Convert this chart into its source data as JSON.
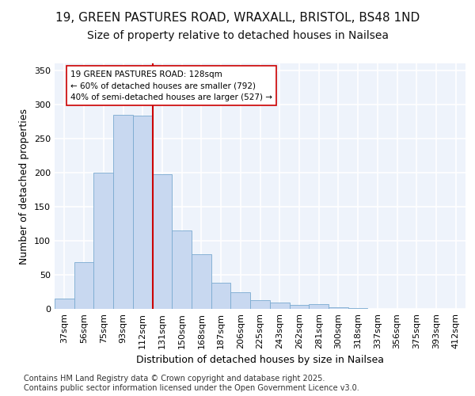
{
  "title_line1": "19, GREEN PASTURES ROAD, WRAXALL, BRISTOL, BS48 1ND",
  "title_line2": "Size of property relative to detached houses in Nailsea",
  "xlabel": "Distribution of detached houses by size in Nailsea",
  "ylabel": "Number of detached properties",
  "categories": [
    "37sqm",
    "56sqm",
    "75sqm",
    "93sqm",
    "112sqm",
    "131sqm",
    "150sqm",
    "168sqm",
    "187sqm",
    "206sqm",
    "225sqm",
    "243sqm",
    "262sqm",
    "281sqm",
    "300sqm",
    "318sqm",
    "337sqm",
    "356sqm",
    "375sqm",
    "393sqm",
    "412sqm"
  ],
  "values": [
    15,
    68,
    200,
    285,
    283,
    197,
    115,
    80,
    38,
    24,
    13,
    9,
    6,
    7,
    2,
    1,
    0,
    0,
    0,
    0,
    0
  ],
  "bar_color": "#c8d8f0",
  "bar_edge_color": "#7aaad0",
  "plot_bg_color": "#eef3fb",
  "fig_bg_color": "#ffffff",
  "grid_color": "#ffffff",
  "vline_color": "#cc0000",
  "vline_index": 5,
  "annotation_text": "19 GREEN PASTURES ROAD: 128sqm\n← 60% of detached houses are smaller (792)\n40% of semi-detached houses are larger (527) →",
  "annotation_box_facecolor": "#ffffff",
  "annotation_box_edgecolor": "#cc0000",
  "ylim": [
    0,
    360
  ],
  "yticks": [
    0,
    50,
    100,
    150,
    200,
    250,
    300,
    350
  ],
  "footer": "Contains HM Land Registry data © Crown copyright and database right 2025.\nContains public sector information licensed under the Open Government Licence v3.0.",
  "title_fontsize": 11,
  "subtitle_fontsize": 10,
  "tick_fontsize": 8,
  "xlabel_fontsize": 9,
  "ylabel_fontsize": 9,
  "ann_fontsize": 7.5,
  "footer_fontsize": 7
}
